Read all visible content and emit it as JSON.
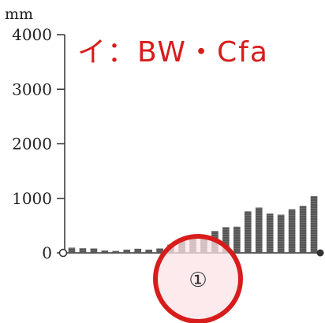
{
  "chart_data": {
    "type": "bar",
    "unit_label": "mm",
    "title": "イ：BW・Cfa",
    "ylim": [
      0,
      4000
    ],
    "yticks": [
      0,
      1000,
      2000,
      3000,
      4000
    ],
    "ytick_labels": [
      "0",
      "1000",
      "2000",
      "3000",
      "4000"
    ],
    "values": [
      95,
      85,
      80,
      45,
      35,
      60,
      75,
      60,
      80,
      150,
      270,
      300,
      320,
      400,
      470,
      480,
      760,
      830,
      720,
      700,
      800,
      860,
      1040
    ],
    "marker_label": "①",
    "colors": {
      "bar": "#555555",
      "annotation": "#d81c1c",
      "circle": "#d81c1c",
      "circle_fill": "#fbe3e6"
    }
  }
}
